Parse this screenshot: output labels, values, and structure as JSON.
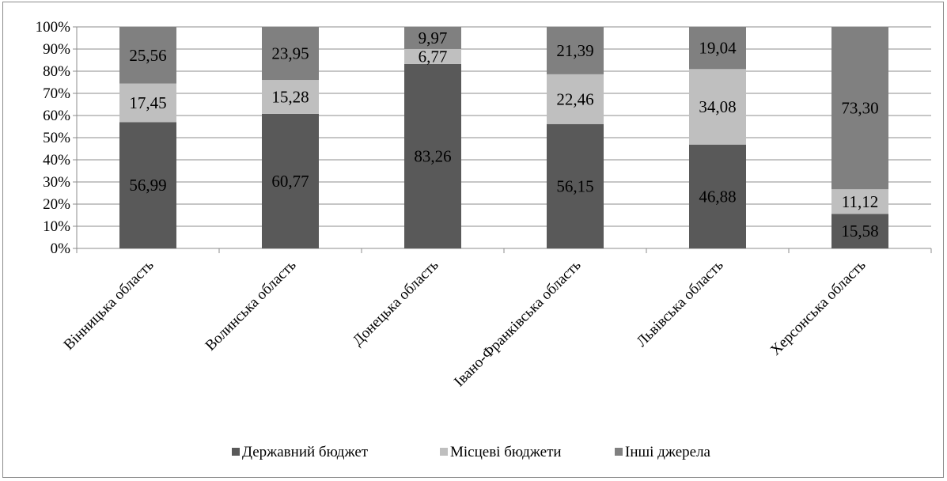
{
  "chart_data": {
    "type": "bar",
    "stacked": "percent",
    "categories": [
      "Вінницька область",
      "Волинська область",
      "Донецька область",
      "Івано-Франківська область",
      "Львівська область",
      "Херсонська область"
    ],
    "series": [
      {
        "name": "Державний бюджет",
        "color": "#595959",
        "values": [
          56.99,
          60.77,
          83.26,
          56.15,
          46.88,
          15.58
        ],
        "labels": [
          "56,99",
          "60,77",
          "83,26",
          "56,15",
          "46,88",
          "15,58"
        ]
      },
      {
        "name": "Місцеві бюджети",
        "color": "#bfbfbf",
        "values": [
          17.45,
          15.28,
          6.77,
          22.46,
          34.08,
          11.12
        ],
        "labels": [
          "17,45",
          "15,28",
          "6,77",
          "22,46",
          "34,08",
          "11,12"
        ]
      },
      {
        "name": "Інші джерела",
        "color": "#808080",
        "values": [
          25.56,
          23.95,
          9.97,
          21.39,
          19.04,
          73.3
        ],
        "labels": [
          "25,56",
          "23,95",
          "9,97",
          "21,39",
          "19,04",
          "73,30"
        ]
      }
    ],
    "yticks": [
      "0%",
      "10%",
      "20%",
      "30%",
      "40%",
      "50%",
      "60%",
      "70%",
      "80%",
      "90%",
      "100%"
    ],
    "ylim": [
      0,
      100
    ],
    "grid": true,
    "legend": "bottom"
  }
}
